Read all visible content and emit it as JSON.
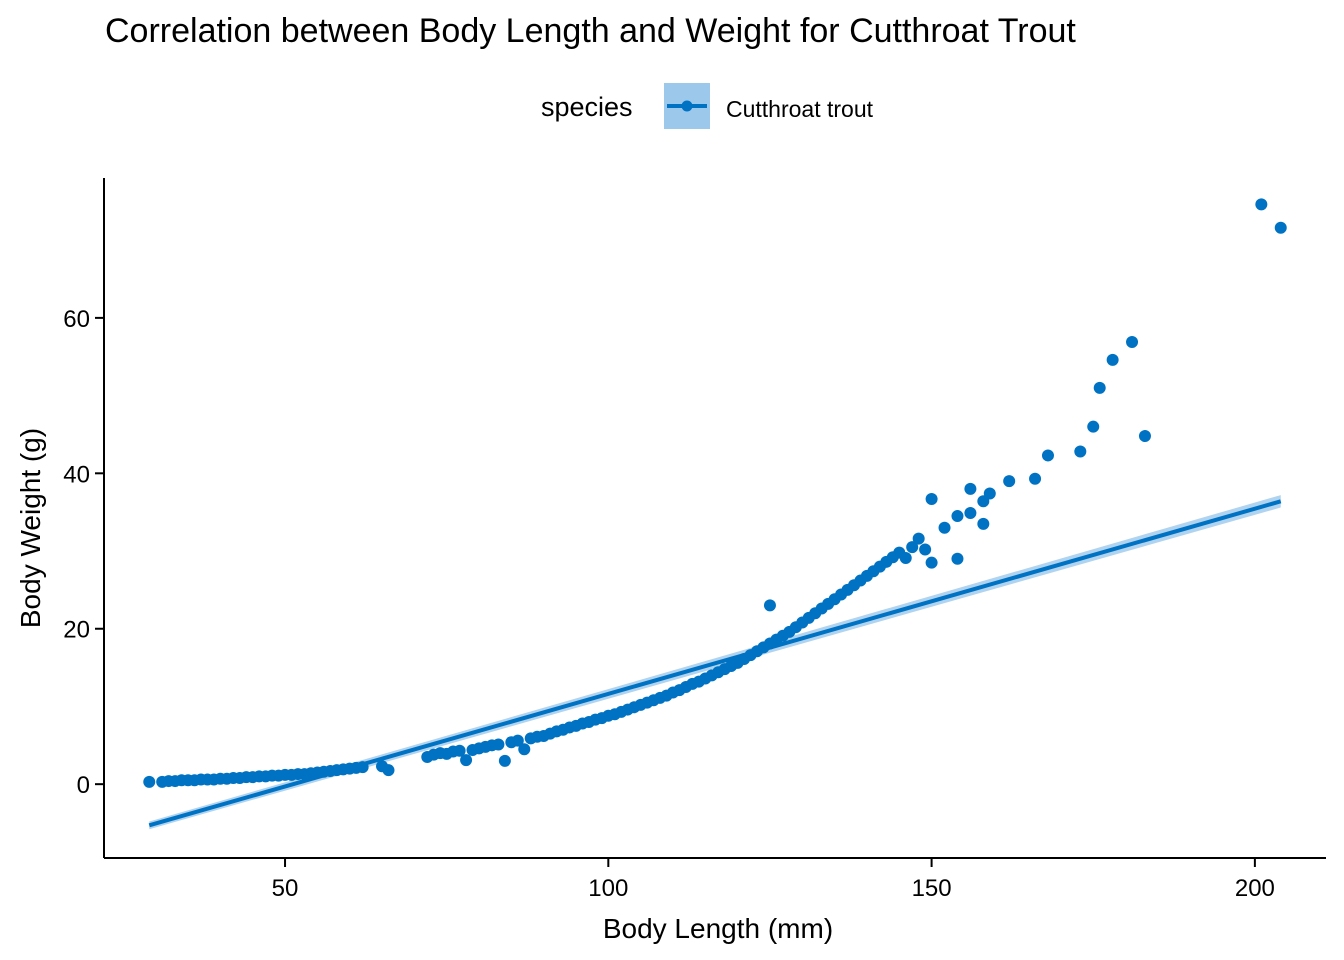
{
  "chart_data": {
    "type": "scatter",
    "title": "Correlation between Body Length and Weight for Cutthroat Trout",
    "xlabel": "Body Length (mm)",
    "ylabel": "Body Weight (g)",
    "xlim": [
      22,
      211
    ],
    "ylim": [
      -9.5,
      78
    ],
    "x_ticks": [
      50,
      100,
      150,
      200
    ],
    "y_ticks": [
      0,
      20,
      40,
      60
    ],
    "grid": false,
    "legend": {
      "title": "species",
      "position": "top",
      "entries": [
        "Cutthroat trout"
      ]
    },
    "series": [
      {
        "name": "Cutthroat trout",
        "color": "#0072c3",
        "points": [
          [
            29,
            0.3
          ],
          [
            31,
            0.3
          ],
          [
            32,
            0.4
          ],
          [
            33,
            0.4
          ],
          [
            34,
            0.5
          ],
          [
            35,
            0.5
          ],
          [
            36,
            0.5
          ],
          [
            37,
            0.6
          ],
          [
            38,
            0.6
          ],
          [
            39,
            0.6
          ],
          [
            40,
            0.7
          ],
          [
            41,
            0.7
          ],
          [
            42,
            0.8
          ],
          [
            43,
            0.8
          ],
          [
            44,
            0.9
          ],
          [
            45,
            0.9
          ],
          [
            46,
            1.0
          ],
          [
            47,
            1.0
          ],
          [
            48,
            1.1
          ],
          [
            49,
            1.1
          ],
          [
            50,
            1.2
          ],
          [
            51,
            1.2
          ],
          [
            52,
            1.3
          ],
          [
            53,
            1.3
          ],
          [
            54,
            1.4
          ],
          [
            55,
            1.5
          ],
          [
            56,
            1.6
          ],
          [
            57,
            1.7
          ],
          [
            58,
            1.8
          ],
          [
            59,
            1.9
          ],
          [
            60,
            2.0
          ],
          [
            61,
            2.1
          ],
          [
            62,
            2.2
          ],
          [
            65,
            2.3
          ],
          [
            66,
            1.8
          ],
          [
            72,
            3.5
          ],
          [
            73,
            3.8
          ],
          [
            74,
            4.0
          ],
          [
            75,
            3.9
          ],
          [
            76,
            4.2
          ],
          [
            77,
            4.3
          ],
          [
            78,
            3.1
          ],
          [
            79,
            4.4
          ],
          [
            80,
            4.6
          ],
          [
            81,
            4.8
          ],
          [
            82,
            5.0
          ],
          [
            83,
            5.1
          ],
          [
            84,
            3.0
          ],
          [
            85,
            5.4
          ],
          [
            86,
            5.6
          ],
          [
            87,
            4.5
          ],
          [
            88,
            5.9
          ],
          [
            89,
            6.1
          ],
          [
            90,
            6.2
          ],
          [
            91,
            6.5
          ],
          [
            92,
            6.8
          ],
          [
            93,
            7.0
          ],
          [
            94,
            7.3
          ],
          [
            95,
            7.5
          ],
          [
            96,
            7.8
          ],
          [
            97,
            8.0
          ],
          [
            98,
            8.3
          ],
          [
            99,
            8.5
          ],
          [
            100,
            8.8
          ],
          [
            101,
            9.0
          ],
          [
            102,
            9.3
          ],
          [
            103,
            9.6
          ],
          [
            104,
            9.9
          ],
          [
            105,
            10.2
          ],
          [
            106,
            10.5
          ],
          [
            107,
            10.8
          ],
          [
            108,
            11.1
          ],
          [
            109,
            11.4
          ],
          [
            110,
            11.8
          ],
          [
            111,
            12.1
          ],
          [
            112,
            12.5
          ],
          [
            113,
            12.9
          ],
          [
            114,
            13.2
          ],
          [
            115,
            13.6
          ],
          [
            116,
            14.0
          ],
          [
            117,
            14.4
          ],
          [
            118,
            14.8
          ],
          [
            119,
            15.2
          ],
          [
            120,
            15.6
          ],
          [
            121,
            16.1
          ],
          [
            122,
            16.6
          ],
          [
            123,
            17.1
          ],
          [
            124,
            17.6
          ],
          [
            125,
            18.1
          ],
          [
            125,
            23.0
          ],
          [
            126,
            18.6
          ],
          [
            127,
            19.1
          ],
          [
            128,
            19.6
          ],
          [
            129,
            20.2
          ],
          [
            130,
            20.8
          ],
          [
            131,
            21.4
          ],
          [
            132,
            22.0
          ],
          [
            133,
            22.6
          ],
          [
            134,
            23.2
          ],
          [
            135,
            23.8
          ],
          [
            136,
            24.4
          ],
          [
            137,
            25.0
          ],
          [
            138,
            25.6
          ],
          [
            139,
            26.2
          ],
          [
            140,
            26.8
          ],
          [
            141,
            27.4
          ],
          [
            142,
            28.0
          ],
          [
            143,
            28.6
          ],
          [
            144,
            29.2
          ],
          [
            145,
            29.8
          ],
          [
            146,
            29.1
          ],
          [
            147,
            30.5
          ],
          [
            148,
            31.6
          ],
          [
            149,
            30.2
          ],
          [
            150,
            36.7
          ],
          [
            150,
            28.5
          ],
          [
            152,
            33.0
          ],
          [
            154,
            34.5
          ],
          [
            154,
            29.0
          ],
          [
            156,
            38.0
          ],
          [
            156,
            34.9
          ],
          [
            158,
            33.5
          ],
          [
            158,
            36.4
          ],
          [
            159,
            37.4
          ],
          [
            162,
            39.0
          ],
          [
            166,
            39.3
          ],
          [
            168,
            42.3
          ],
          [
            173,
            42.8
          ],
          [
            175,
            46.0
          ],
          [
            176,
            51.0
          ],
          [
            178,
            54.6
          ],
          [
            181,
            56.9
          ],
          [
            183,
            44.8
          ],
          [
            201,
            74.6
          ],
          [
            204,
            71.6
          ]
        ]
      }
    ],
    "trend_line": {
      "type": "linear",
      "start": [
        29,
        -5.3
      ],
      "end": [
        204,
        36.4
      ],
      "ci_start": 0.5,
      "ci_end": 0.8
    }
  }
}
